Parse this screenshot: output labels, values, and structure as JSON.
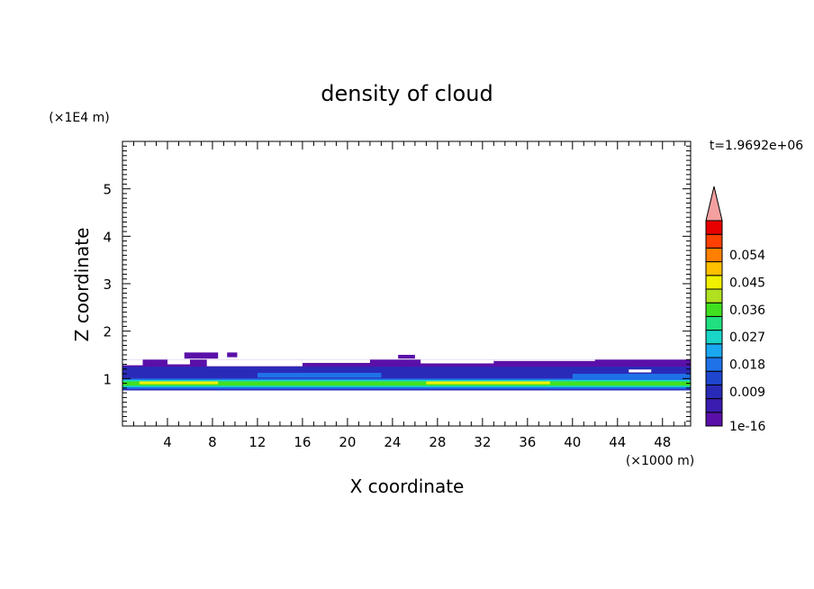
{
  "chart_data": {
    "type": "heatmap",
    "title": "density of cloud",
    "xlabel": "X coordinate",
    "ylabel": "Z coordinate",
    "x_unit": "(×1000 m)",
    "y_unit": "(×1E4 m)",
    "time_label": "t=1.9692e+06",
    "xlim": [
      0,
      50.5
    ],
    "ylim": [
      0,
      6
    ],
    "x_ticks": [
      4,
      8,
      12,
      16,
      20,
      24,
      28,
      32,
      36,
      40,
      44,
      48
    ],
    "y_ticks": [
      1,
      2,
      3,
      4,
      5
    ],
    "colorbar": {
      "labels": [
        {
          "level": 0,
          "text": "1e-16"
        },
        {
          "level": 2,
          "text": "0.009"
        },
        {
          "level": 4,
          "text": "0.018"
        },
        {
          "level": 6,
          "text": "0.027"
        },
        {
          "level": 8,
          "text": "0.036"
        },
        {
          "level": 10,
          "text": "0.045"
        },
        {
          "level": 12,
          "text": "0.054"
        }
      ],
      "colors": [
        "#5a10a8",
        "#3a1cb0",
        "#2a2ab8",
        "#1f46cf",
        "#1f72e8",
        "#1aa8f0",
        "#19d6c8",
        "#20e080",
        "#40e020",
        "#b0e020",
        "#f0f000",
        "#ffc000",
        "#ff8000",
        "#ff4000",
        "#e80000"
      ],
      "overflow_color": "#f4a0a0"
    },
    "bands": [
      {
        "z": [
          1.0,
          1.4
        ],
        "level": 0
      },
      {
        "z": [
          0.75,
          1.25
        ],
        "level": 2
      },
      {
        "z": [
          0.78,
          1.0
        ],
        "level": 4
      },
      {
        "z": [
          0.82,
          0.97
        ],
        "level": 6
      },
      {
        "z": [
          0.85,
          0.94
        ],
        "level": 8
      }
    ],
    "patches": [
      {
        "x": [
          5.5,
          8.5
        ],
        "z": [
          1.42,
          1.55
        ],
        "level": 0
      },
      {
        "x": [
          9.3,
          10.2
        ],
        "z": [
          1.45,
          1.55
        ],
        "level": 0
      },
      {
        "x": [
          24.5,
          26.0
        ],
        "z": [
          1.42,
          1.5
        ],
        "level": 0
      },
      {
        "x": [
          1.5,
          8.5
        ],
        "z": [
          0.88,
          0.94
        ],
        "level": 10
      },
      {
        "x": [
          27.0,
          38.0
        ],
        "z": [
          0.88,
          0.94
        ],
        "level": 10
      },
      {
        "x": [
          12.0,
          23.0
        ],
        "z": [
          1.02,
          1.12
        ],
        "level": 4
      },
      {
        "x": [
          40.0,
          50.5
        ],
        "z": [
          1.0,
          1.1
        ],
        "level": 4
      }
    ],
    "gaps": [
      {
        "x": [
          0,
          1.8
        ],
        "z": [
          1.28,
          1.4
        ]
      },
      {
        "x": [
          4.0,
          6.0
        ],
        "z": [
          1.3,
          1.4
        ]
      },
      {
        "x": [
          7.5,
          16.0
        ],
        "z": [
          1.26,
          1.4
        ]
      },
      {
        "x": [
          16.0,
          22.0
        ],
        "z": [
          1.33,
          1.4
        ]
      },
      {
        "x": [
          26.5,
          33.0
        ],
        "z": [
          1.32,
          1.4
        ]
      },
      {
        "x": [
          33.0,
          42.0
        ],
        "z": [
          1.37,
          1.4
        ]
      },
      {
        "x": [
          45.0,
          47.0
        ],
        "z": [
          1.13,
          1.19
        ]
      }
    ]
  }
}
